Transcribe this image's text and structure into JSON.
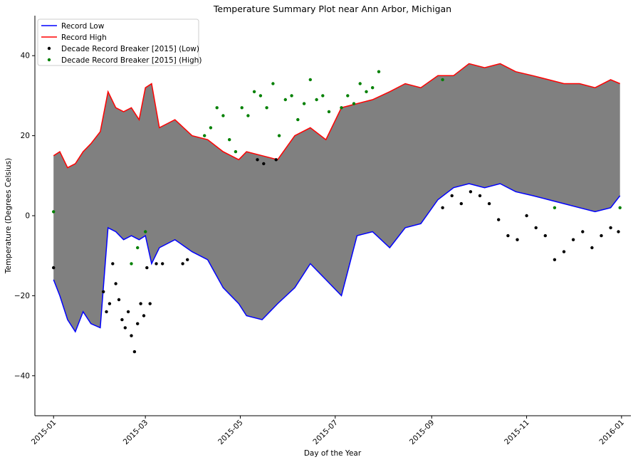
{
  "chart_data": {
    "type": "line",
    "title": "Temperature Summary Plot near Ann Arbor, Michigan",
    "xlabel": "Day of the Year",
    "ylabel": "Temperature (Degrees Celsius)",
    "x_ticks": [
      "2015-01",
      "2015-03",
      "2015-05",
      "2015-07",
      "2015-09",
      "2015-11",
      "2016-01"
    ],
    "y_ticks": [
      "−40",
      "−20",
      "0",
      "20",
      "40"
    ],
    "ylim": [
      -50,
      50
    ],
    "xlim": [
      "2014-12-20",
      "2016-01-07"
    ],
    "grid": false,
    "legend_position": "top-left",
    "fill_color": "#808080",
    "series": [
      {
        "name": "Record Low",
        "kind": "line",
        "color": "#0000ff",
        "x": [
          "2015-01-01",
          "2015-01-05",
          "2015-01-10",
          "2015-01-15",
          "2015-01-20",
          "2015-01-25",
          "2015-01-31",
          "2015-02-05",
          "2015-02-10",
          "2015-02-15",
          "2015-02-20",
          "2015-02-25",
          "2015-03-01",
          "2015-03-05",
          "2015-03-10",
          "2015-03-20",
          "2015-03-31",
          "2015-04-10",
          "2015-04-20",
          "2015-04-30",
          "2015-05-05",
          "2015-05-15",
          "2015-05-25",
          "2015-06-05",
          "2015-06-15",
          "2015-06-25",
          "2015-07-05",
          "2015-07-15",
          "2015-07-25",
          "2015-08-05",
          "2015-08-15",
          "2015-08-25",
          "2015-09-05",
          "2015-09-15",
          "2015-09-25",
          "2015-10-05",
          "2015-10-15",
          "2015-10-25",
          "2015-11-05",
          "2015-11-15",
          "2015-11-25",
          "2015-12-05",
          "2015-12-15",
          "2015-12-25",
          "2015-12-31"
        ],
        "values": [
          -16,
          -20,
          -26,
          -29,
          -24,
          -27,
          -28,
          -3,
          -4,
          -6,
          -5,
          -6,
          -5,
          -12,
          -8,
          -6,
          -9,
          -11,
          -18,
          -22,
          -25,
          -26,
          -22,
          -18,
          -12,
          -16,
          -20,
          -5,
          -4,
          -8,
          -3,
          -2,
          4,
          7,
          8,
          7,
          8,
          6,
          5,
          4,
          3,
          2,
          1,
          2,
          5
        ]
      },
      {
        "name": "Record High",
        "kind": "line",
        "color": "#ff0000",
        "x": [
          "2015-01-01",
          "2015-01-05",
          "2015-01-10",
          "2015-01-15",
          "2015-01-20",
          "2015-01-25",
          "2015-01-31",
          "2015-02-05",
          "2015-02-10",
          "2015-02-15",
          "2015-02-20",
          "2015-02-25",
          "2015-03-01",
          "2015-03-05",
          "2015-03-10",
          "2015-03-20",
          "2015-03-31",
          "2015-04-10",
          "2015-04-20",
          "2015-04-30",
          "2015-05-05",
          "2015-05-15",
          "2015-05-25",
          "2015-06-05",
          "2015-06-15",
          "2015-06-25",
          "2015-07-05",
          "2015-07-15",
          "2015-07-25",
          "2015-08-05",
          "2015-08-15",
          "2015-08-25",
          "2015-09-05",
          "2015-09-15",
          "2015-09-25",
          "2015-10-05",
          "2015-10-15",
          "2015-10-25",
          "2015-11-05",
          "2015-11-15",
          "2015-11-25",
          "2015-12-05",
          "2015-12-15",
          "2015-12-25",
          "2015-12-31"
        ],
        "values": [
          15,
          16,
          12,
          13,
          16,
          18,
          21,
          31,
          27,
          26,
          27,
          24,
          32,
          33,
          22,
          24,
          20,
          19,
          16,
          14,
          16,
          15,
          14,
          20,
          22,
          19,
          27,
          28,
          29,
          31,
          33,
          32,
          35,
          35,
          38,
          37,
          38,
          36,
          35,
          34,
          33,
          33,
          32,
          34,
          33
        ]
      },
      {
        "name": "Decade Record Breaker [2015] (Low)",
        "kind": "scatter",
        "color": "#000000",
        "x": [
          "2015-01-01",
          "2015-02-02",
          "2015-02-04",
          "2015-02-06",
          "2015-02-08",
          "2015-02-10",
          "2015-02-12",
          "2015-02-14",
          "2015-02-16",
          "2015-02-18",
          "2015-02-20",
          "2015-02-22",
          "2015-02-24",
          "2015-02-26",
          "2015-02-28",
          "2015-03-02",
          "2015-03-04",
          "2015-03-08",
          "2015-03-12",
          "2015-03-25",
          "2015-03-28",
          "2015-05-12",
          "2015-05-16",
          "2015-05-24",
          "2015-09-08",
          "2015-09-14",
          "2015-09-20",
          "2015-09-26",
          "2015-10-02",
          "2015-10-08",
          "2015-10-14",
          "2015-10-20",
          "2015-10-26",
          "2015-11-01",
          "2015-11-07",
          "2015-11-13",
          "2015-11-19",
          "2015-11-25",
          "2015-12-01",
          "2015-12-07",
          "2015-12-13",
          "2015-12-19",
          "2015-12-25",
          "2015-12-30"
        ],
        "values": [
          -13,
          -19,
          -24,
          -22,
          -12,
          -17,
          -21,
          -26,
          -28,
          -24,
          -30,
          -34,
          -27,
          -22,
          -25,
          -13,
          -22,
          -12,
          -12,
          -12,
          -11,
          14,
          13,
          14,
          2,
          5,
          3,
          6,
          5,
          3,
          -1,
          -5,
          -6,
          0,
          -3,
          -5,
          -11,
          -9,
          -6,
          -4,
          -8,
          -5,
          -3,
          -4
        ]
      },
      {
        "name": "Decade Record Breaker [2015] (High)",
        "kind": "scatter",
        "color": "#008000",
        "x": [
          "2015-01-01",
          "2015-02-20",
          "2015-02-24",
          "2015-03-01",
          "2015-04-08",
          "2015-04-12",
          "2015-04-16",
          "2015-04-20",
          "2015-04-24",
          "2015-04-28",
          "2015-05-02",
          "2015-05-06",
          "2015-05-10",
          "2015-05-14",
          "2015-05-18",
          "2015-05-22",
          "2015-05-26",
          "2015-05-30",
          "2015-06-03",
          "2015-06-07",
          "2015-06-11",
          "2015-06-15",
          "2015-06-19",
          "2015-06-23",
          "2015-06-27",
          "2015-07-05",
          "2015-07-09",
          "2015-07-13",
          "2015-07-17",
          "2015-07-21",
          "2015-07-25",
          "2015-07-29",
          "2015-09-08",
          "2015-11-19",
          "2015-12-31"
        ],
        "values": [
          1,
          -12,
          -8,
          -4,
          20,
          22,
          27,
          25,
          19,
          16,
          27,
          25,
          31,
          30,
          27,
          33,
          20,
          29,
          30,
          24,
          28,
          34,
          29,
          30,
          26,
          27,
          30,
          28,
          33,
          31,
          32,
          36,
          34,
          2,
          2
        ]
      }
    ]
  }
}
